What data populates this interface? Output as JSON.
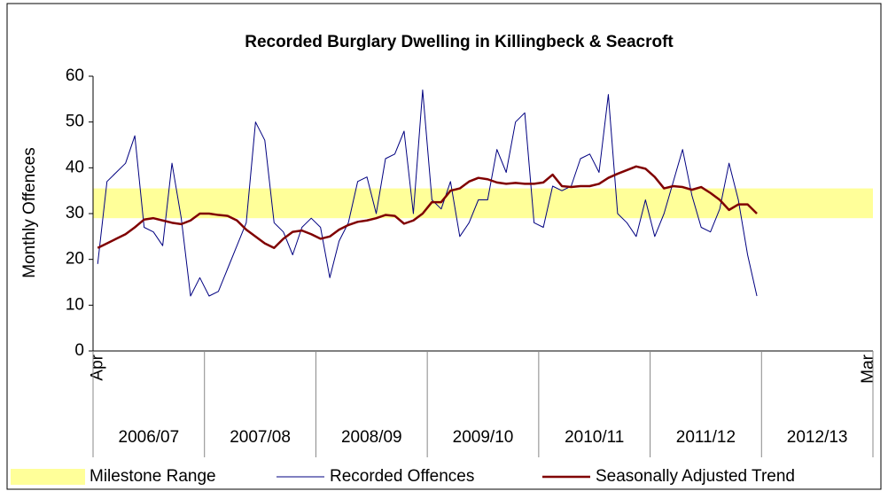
{
  "chart_data": {
    "type": "line",
    "title": "Recorded Burglary Dwelling in Killingbeck & Seacroft",
    "y_label": "Monthly Offences",
    "categories": [
      "Apr",
      null,
      null,
      null,
      null,
      null,
      null,
      null,
      null,
      null,
      null,
      null,
      null,
      null,
      null,
      null,
      null,
      null,
      null,
      null,
      null,
      null,
      null,
      null,
      null,
      null,
      null,
      null,
      null,
      null,
      null,
      null,
      null,
      null,
      null,
      null,
      null,
      null,
      null,
      null,
      null,
      null,
      null,
      null,
      null,
      null,
      null,
      null,
      null,
      null,
      null,
      null,
      null,
      null,
      null,
      null,
      null,
      null,
      null,
      null,
      null,
      null,
      null,
      null,
      null,
      null,
      null,
      null,
      null,
      null,
      null,
      null,
      null,
      null,
      null,
      null,
      null,
      null,
      null,
      null,
      null,
      null,
      null,
      "Mar"
    ],
    "year_groups": [
      "2006/07",
      "2007/08",
      "2008/09",
      "2009/10",
      "2010/11",
      "2011/12",
      "2012/13"
    ],
    "band": {
      "name": "Milestone Range",
      "color": "#ffff99",
      "range": [
        29,
        35.5
      ]
    },
    "series": [
      {
        "name": "Recorded Offences",
        "color": "#000080",
        "width": 1,
        "values": [
          19,
          37,
          39,
          41,
          47,
          27,
          26,
          23,
          41,
          29,
          12,
          16,
          12,
          13,
          18,
          23,
          28,
          50,
          46,
          28,
          26,
          21,
          27,
          29,
          27,
          16,
          24,
          28,
          37,
          38,
          30,
          42,
          43,
          48,
          30,
          57,
          33,
          31,
          37,
          25,
          28,
          33,
          33,
          44,
          39,
          50,
          52,
          28,
          27,
          36,
          35,
          36,
          42,
          43,
          39,
          56,
          30,
          28,
          25,
          33,
          25,
          30,
          37,
          44,
          34,
          27,
          26,
          31,
          41,
          33,
          21,
          12,
          null,
          null,
          null,
          null,
          null,
          null,
          null,
          null,
          null,
          null,
          null,
          null
        ]
      },
      {
        "name": "Seasonally Adjusted Trend",
        "color": "#800000",
        "width": 2.5,
        "values": [
          22.5,
          23.5,
          24.5,
          25.5,
          27,
          28.7,
          29,
          28.5,
          28,
          27.7,
          28.5,
          30,
          30,
          29.7,
          29.5,
          28.5,
          26.5,
          25,
          23.5,
          22.5,
          24.5,
          26,
          26.3,
          25.5,
          24.5,
          25,
          26.5,
          27.5,
          28.2,
          28.5,
          29,
          29.7,
          29.5,
          27.8,
          28.5,
          30,
          32.5,
          32.5,
          35,
          35.5,
          37,
          37.8,
          37.5,
          36.8,
          36.5,
          36.7,
          36.5,
          36.5,
          36.8,
          38.5,
          36,
          35.8,
          36,
          36,
          36.5,
          37.8,
          38.7,
          39.5,
          40.3,
          39.8,
          38,
          35.5,
          36,
          35.8,
          35.2,
          35.8,
          34.5,
          33,
          30.8,
          32,
          32,
          30,
          null,
          null,
          null,
          null,
          null,
          null,
          null,
          null,
          null,
          null,
          null,
          null
        ]
      }
    ],
    "ylim": [
      0,
      60
    ],
    "yticks": [
      0,
      10,
      20,
      30,
      40,
      50,
      60
    ],
    "legend": "bottom"
  }
}
